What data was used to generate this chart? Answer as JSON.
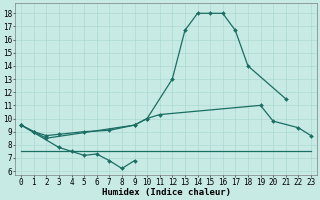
{
  "xlabel": "Humidex (Indice chaleur)",
  "bg_color": "#c8eae5",
  "grid_color": "#a8d5cf",
  "line_color": "#1a6e62",
  "line1_x": [
    0,
    1,
    2,
    9,
    10,
    12,
    13,
    14,
    15,
    16,
    17,
    18,
    21
  ],
  "line1_y": [
    9.5,
    9.0,
    8.5,
    9.5,
    10.0,
    13.0,
    16.7,
    18.0,
    18.0,
    18.0,
    16.7,
    14.0,
    11.5
  ],
  "line2_x": [
    0,
    1,
    2,
    3,
    5,
    7,
    9,
    10,
    11,
    19,
    20,
    22,
    23
  ],
  "line2_y": [
    9.5,
    9.0,
    8.7,
    8.8,
    9.0,
    9.1,
    9.5,
    10.0,
    10.3,
    11.0,
    9.8,
    9.3,
    8.7
  ],
  "line3_x": [
    0,
    3,
    4,
    5,
    6,
    7,
    8,
    9
  ],
  "line3_y": [
    9.5,
    7.8,
    7.5,
    7.2,
    7.3,
    6.8,
    6.2,
    6.8
  ],
  "line4_x": [
    0,
    10,
    19,
    23
  ],
  "line4_y": [
    7.5,
    7.5,
    7.5,
    7.5
  ],
  "ylim": [
    5.7,
    18.8
  ],
  "xlim": [
    -0.5,
    23.5
  ],
  "yticks": [
    6,
    7,
    8,
    9,
    10,
    11,
    12,
    13,
    14,
    15,
    16,
    17,
    18
  ],
  "xticks": [
    0,
    1,
    2,
    3,
    4,
    5,
    6,
    7,
    8,
    9,
    10,
    11,
    12,
    13,
    14,
    15,
    16,
    17,
    18,
    19,
    20,
    21,
    22,
    23
  ],
  "marker_size": 2.0,
  "line_width": 0.9,
  "xlabel_fontsize": 6.5,
  "tick_fontsize": 5.5
}
